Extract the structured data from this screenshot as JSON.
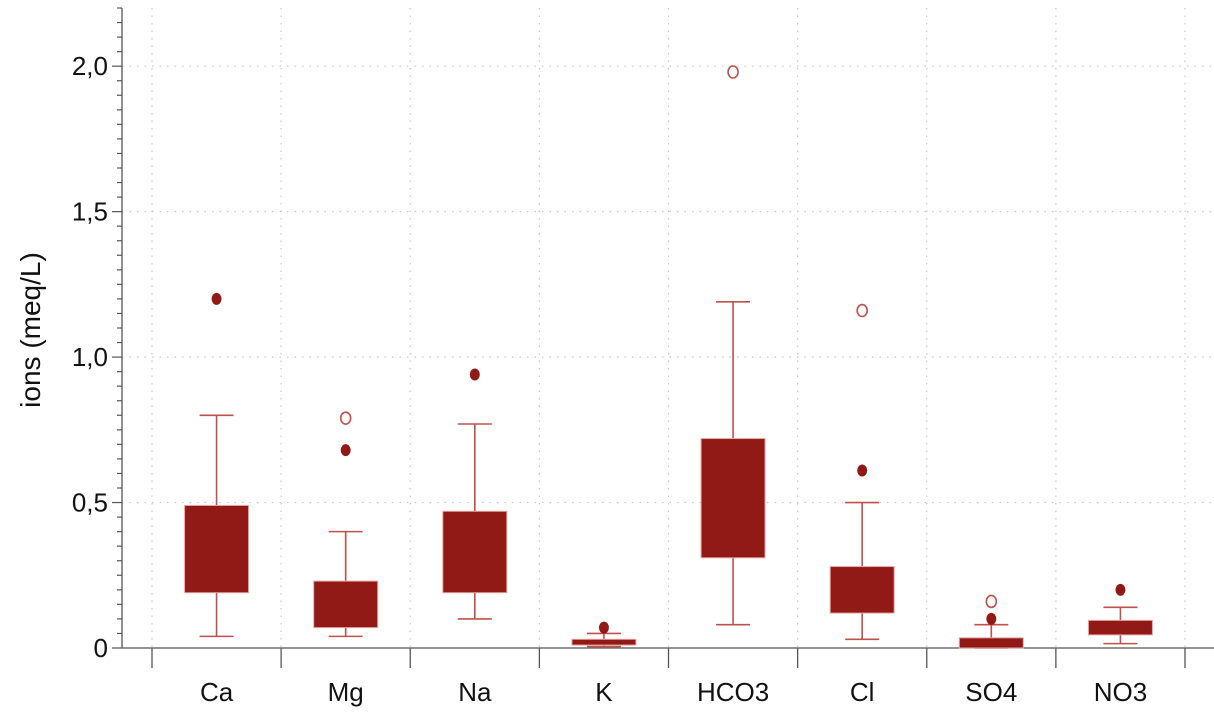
{
  "chart_data": {
    "type": "box",
    "title": "",
    "xlabel": "",
    "ylabel": "ions (meq/L)",
    "ylim": [
      0,
      2.2
    ],
    "yticks": [
      0,
      0.5,
      1.0,
      1.5,
      2.0
    ],
    "ytick_labels": [
      "0",
      "0,5",
      "1,0",
      "1,5",
      "2,0"
    ],
    "grid": true,
    "colors": {
      "box": "#921a16",
      "whisker": "#c0504d",
      "outlier": "#921a16",
      "extreme": "#c0504d",
      "axis": "#555555",
      "grid": "#c8c8c8"
    },
    "categories": [
      "Ca",
      "Mg",
      "Na",
      "K",
      "HCO3",
      "Cl",
      "SO4",
      "NO3"
    ],
    "boxes": [
      {
        "label": "Ca",
        "whisker_low": 0.04,
        "q1": 0.19,
        "q3": 0.49,
        "whisker_high": 0.8,
        "outliers": [
          1.2
        ],
        "extremes": []
      },
      {
        "label": "Mg",
        "whisker_low": 0.04,
        "q1": 0.07,
        "q3": 0.23,
        "whisker_high": 0.4,
        "outliers": [
          0.68
        ],
        "extremes": [
          0.79
        ]
      },
      {
        "label": "Na",
        "whisker_low": 0.1,
        "q1": 0.19,
        "q3": 0.47,
        "whisker_high": 0.77,
        "outliers": [
          0.94
        ],
        "extremes": []
      },
      {
        "label": "K",
        "whisker_low": 0.005,
        "q1": 0.01,
        "q3": 0.03,
        "whisker_high": 0.05,
        "outliers": [
          0.07
        ],
        "extremes": []
      },
      {
        "label": "HCO3",
        "whisker_low": 0.08,
        "q1": 0.31,
        "q3": 0.72,
        "whisker_high": 1.19,
        "outliers": [],
        "extremes": [
          1.98
        ]
      },
      {
        "label": "Cl",
        "whisker_low": 0.03,
        "q1": 0.12,
        "q3": 0.28,
        "whisker_high": 0.5,
        "outliers": [
          0.61
        ],
        "extremes": [
          1.16
        ]
      },
      {
        "label": "SO4",
        "whisker_low": 0.0,
        "q1": 0.0,
        "q3": 0.035,
        "whisker_high": 0.08,
        "outliers": [
          0.1
        ],
        "extremes": [
          0.16
        ]
      },
      {
        "label": "NO3",
        "whisker_low": 0.015,
        "q1": 0.045,
        "q3": 0.095,
        "whisker_high": 0.14,
        "outliers": [
          0.2
        ],
        "extremes": []
      }
    ]
  }
}
